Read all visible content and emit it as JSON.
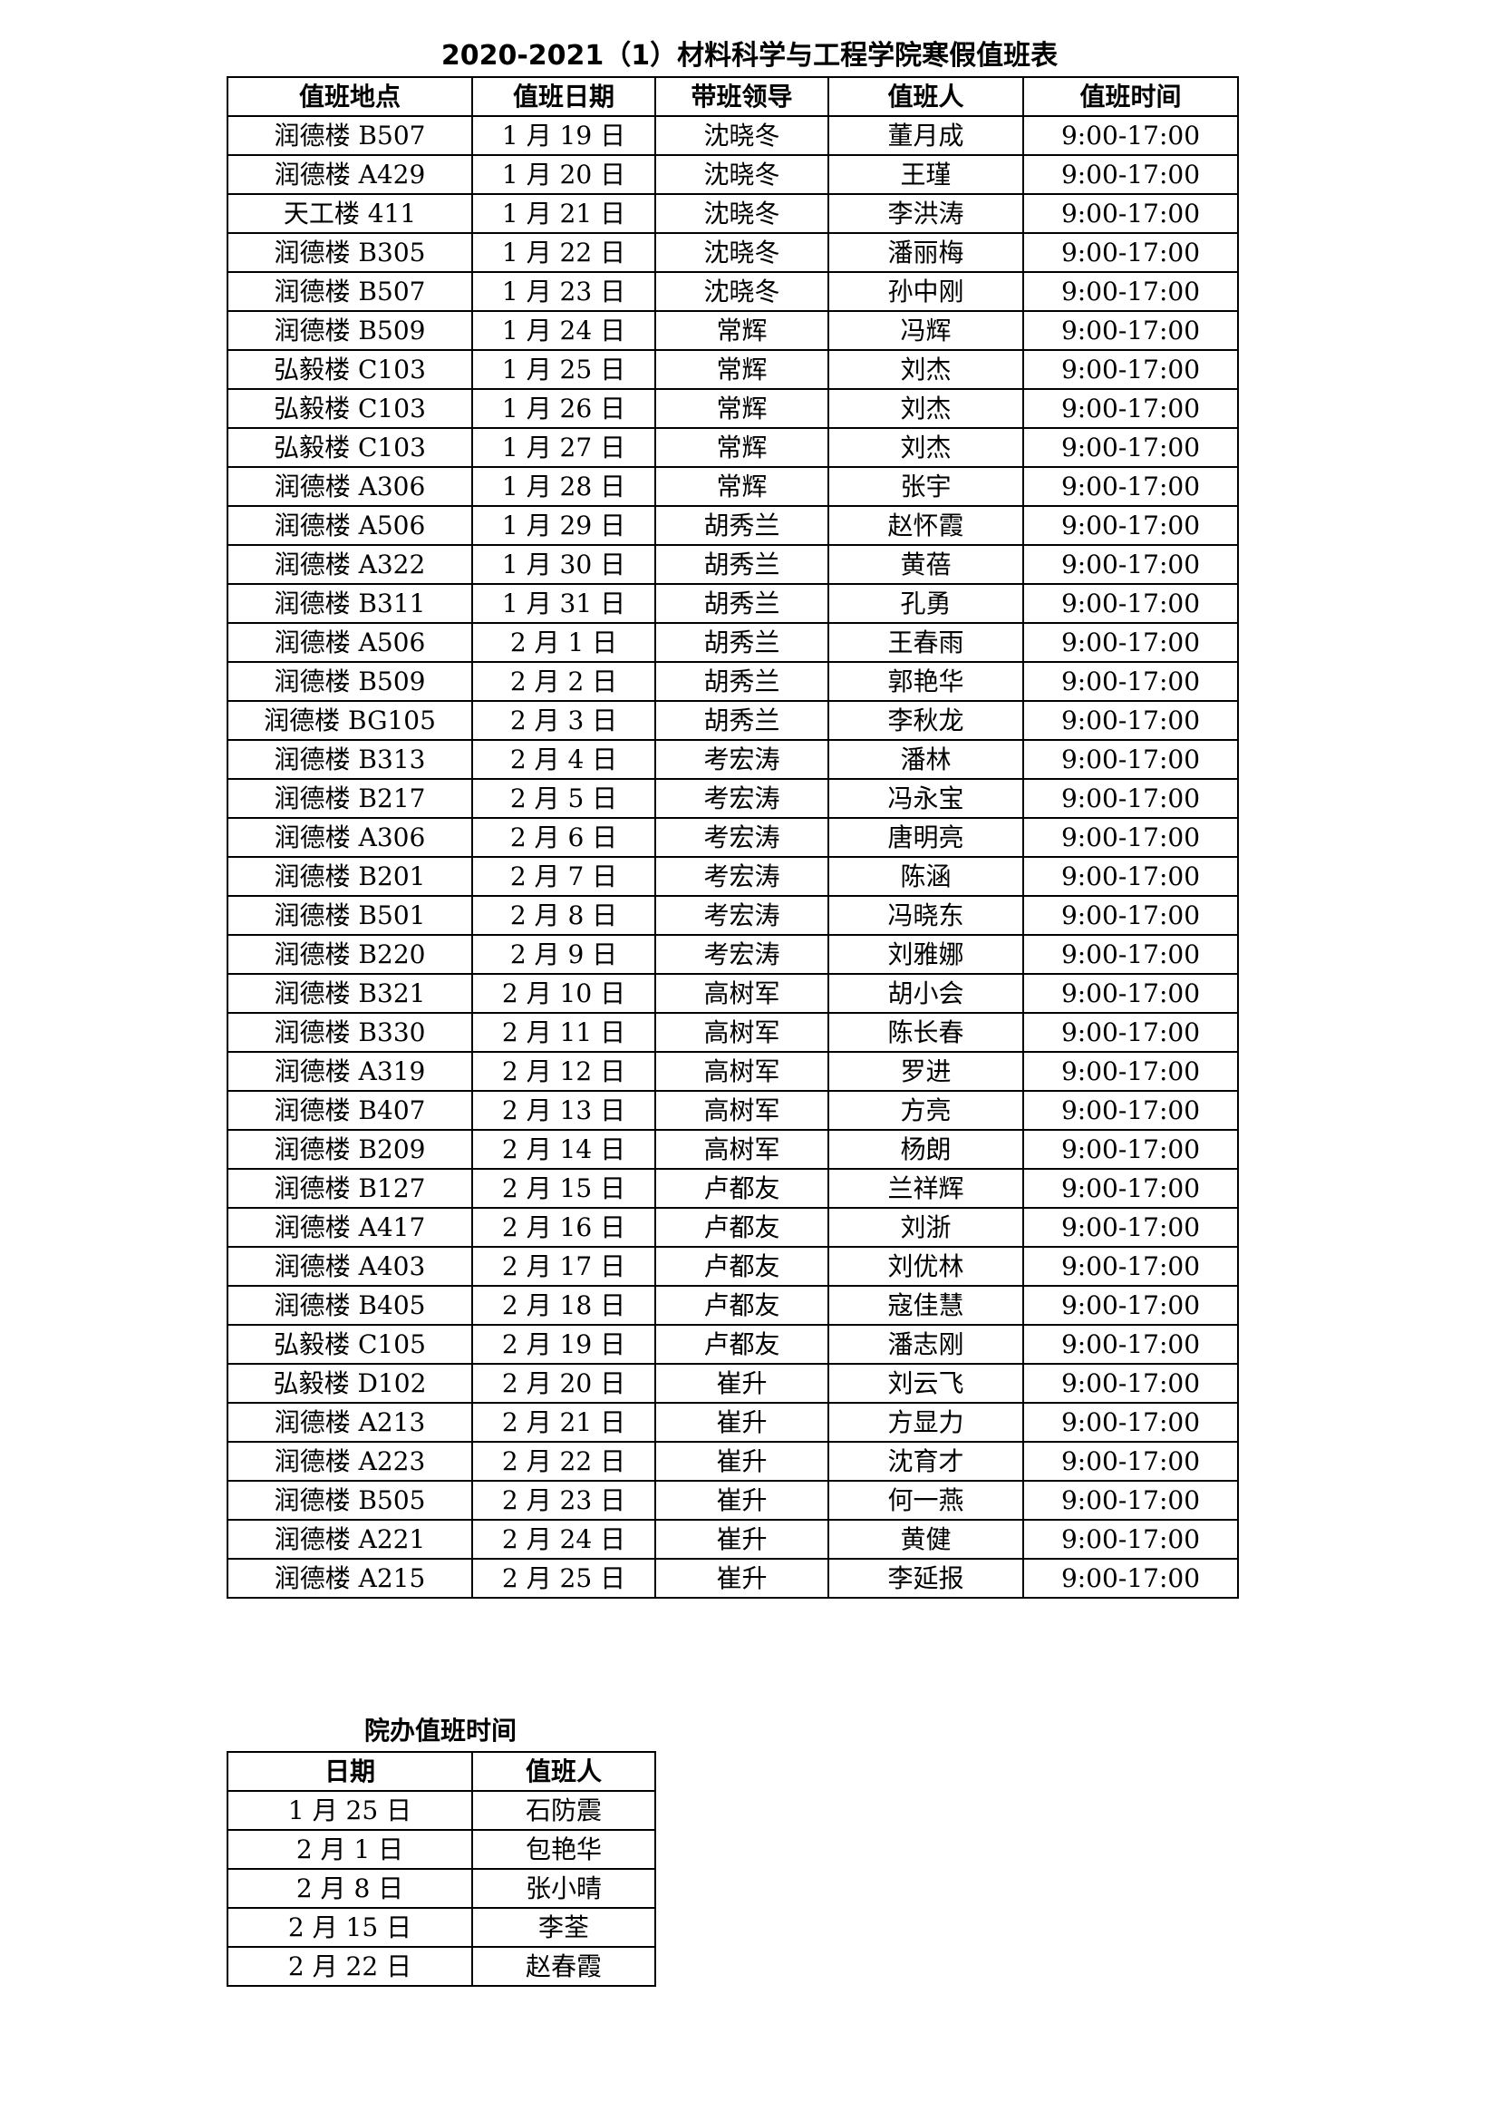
{
  "title": "2020-2021（1）材料科学与工程学院寒假值班表",
  "main_table": {
    "headers": [
      "值班地点",
      "值班日期",
      "带班领导",
      "值班人",
      "值班时间"
    ],
    "rows": [
      [
        "润德楼 B507",
        "1 月 19 日",
        "沈晓冬",
        "董月成",
        "9:00-17:00"
      ],
      [
        "润德楼 A429",
        "1 月 20 日",
        "沈晓冬",
        "王瑾",
        "9:00-17:00"
      ],
      [
        "天工楼 411",
        "1 月 21 日",
        "沈晓冬",
        "李洪涛",
        "9:00-17:00"
      ],
      [
        "润德楼 B305",
        "1 月 22 日",
        "沈晓冬",
        "潘丽梅",
        "9:00-17:00"
      ],
      [
        "润德楼 B507",
        "1 月 23 日",
        "沈晓冬",
        "孙中刚",
        "9:00-17:00"
      ],
      [
        "润德楼 B509",
        "1 月 24 日",
        "常辉",
        "冯辉",
        "9:00-17:00"
      ],
      [
        "弘毅楼 C103",
        "1 月 25 日",
        "常辉",
        "刘杰",
        "9:00-17:00"
      ],
      [
        "弘毅楼 C103",
        "1 月 26 日",
        "常辉",
        "刘杰",
        "9:00-17:00"
      ],
      [
        "弘毅楼 C103",
        "1 月 27 日",
        "常辉",
        "刘杰",
        "9:00-17:00"
      ],
      [
        "润德楼 A306",
        "1 月 28 日",
        "常辉",
        "张宇",
        "9:00-17:00"
      ],
      [
        "润德楼 A506",
        "1 月 29 日",
        "胡秀兰",
        "赵怀霞",
        "9:00-17:00"
      ],
      [
        "润德楼 A322",
        "1 月 30 日",
        "胡秀兰",
        "黄蓓",
        "9:00-17:00"
      ],
      [
        "润德楼 B311",
        "1 月 31 日",
        "胡秀兰",
        "孔勇",
        "9:00-17:00"
      ],
      [
        "润德楼 A506",
        "2 月 1 日",
        "胡秀兰",
        "王春雨",
        "9:00-17:00"
      ],
      [
        "润德楼 B509",
        "2 月 2 日",
        "胡秀兰",
        "郭艳华",
        "9:00-17:00"
      ],
      [
        "润德楼 BG105",
        "2 月 3 日",
        "胡秀兰",
        "李秋龙",
        "9:00-17:00"
      ],
      [
        "润德楼 B313",
        "2 月 4 日",
        "考宏涛",
        "潘林",
        "9:00-17:00"
      ],
      [
        "润德楼 B217",
        "2 月 5 日",
        "考宏涛",
        "冯永宝",
        "9:00-17:00"
      ],
      [
        "润德楼 A306",
        "2 月 6 日",
        "考宏涛",
        "唐明亮",
        "9:00-17:00"
      ],
      [
        "润德楼 B201",
        "2 月 7 日",
        "考宏涛",
        "陈涵",
        "9:00-17:00"
      ],
      [
        "润德楼 B501",
        "2 月 8 日",
        "考宏涛",
        "冯晓东",
        "9:00-17:00"
      ],
      [
        "润德楼 B220",
        "2 月 9 日",
        "考宏涛",
        "刘雅娜",
        "9:00-17:00"
      ],
      [
        "润德楼 B321",
        "2 月 10 日",
        "高树军",
        "胡小会",
        "9:00-17:00"
      ],
      [
        "润德楼 B330",
        "2 月 11 日",
        "高树军",
        "陈长春",
        "9:00-17:00"
      ],
      [
        "润德楼 A319",
        "2 月 12 日",
        "高树军",
        "罗进",
        "9:00-17:00"
      ],
      [
        "润德楼 B407",
        "2 月 13 日",
        "高树军",
        "方亮",
        "9:00-17:00"
      ],
      [
        "润德楼 B209",
        "2 月 14 日",
        "高树军",
        "杨朗",
        "9:00-17:00"
      ],
      [
        "润德楼 B127",
        "2 月 15 日",
        "卢都友",
        "兰祥辉",
        "9:00-17:00"
      ],
      [
        "润德楼 A417",
        "2 月 16 日",
        "卢都友",
        "刘浙",
        "9:00-17:00"
      ],
      [
        "润德楼 A403",
        "2 月 17 日",
        "卢都友",
        "刘优林",
        "9:00-17:00"
      ],
      [
        "润德楼 B405",
        "2 月 18 日",
        "卢都友",
        "寇佳慧",
        "9:00-17:00"
      ],
      [
        "弘毅楼 C105",
        "2 月 19 日",
        "卢都友",
        "潘志刚",
        "9:00-17:00"
      ],
      [
        "弘毅楼 D102",
        "2 月 20 日",
        "崔升",
        "刘云飞",
        "9:00-17:00"
      ],
      [
        "润德楼 A213",
        "2 月 21 日",
        "崔升",
        "方显力",
        "9:00-17:00"
      ],
      [
        "润德楼 A223",
        "2 月 22 日",
        "崔升",
        "沈育才",
        "9:00-17:00"
      ],
      [
        "润德楼 B505",
        "2 月 23 日",
        "崔升",
        "何一燕",
        "9:00-17:00"
      ],
      [
        "润德楼 A221",
        "2 月 24 日",
        "崔升",
        "黄健",
        "9:00-17:00"
      ],
      [
        "润德楼 A215",
        "2 月 25 日",
        "崔升",
        "李延报",
        "9:00-17:00"
      ]
    ]
  },
  "office_table": {
    "title": "院办值班时间",
    "headers": [
      "日期",
      "值班人"
    ],
    "rows": [
      [
        "1 月 25 日",
        "石防震"
      ],
      [
        "2 月 1 日",
        "包艳华"
      ],
      [
        "2 月 8 日",
        "张小晴"
      ],
      [
        "2 月 15 日",
        "李荃"
      ],
      [
        "2 月 22 日",
        "赵春霞"
      ]
    ]
  }
}
